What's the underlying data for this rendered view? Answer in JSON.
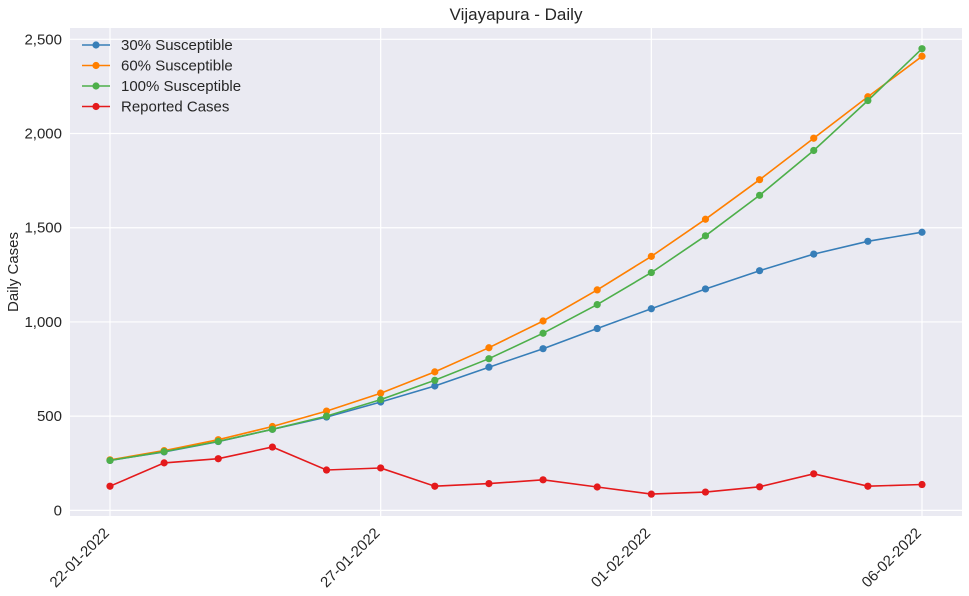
{
  "chart_data": {
    "type": "line",
    "title": "Vijayapura - Daily",
    "xlabel": "",
    "ylabel": "Daily Cases",
    "x": [
      "22-01-2022",
      "23-01-2022",
      "24-01-2022",
      "25-01-2022",
      "26-01-2022",
      "27-01-2022",
      "28-01-2022",
      "29-01-2022",
      "30-01-2022",
      "31-01-2022",
      "01-02-2022",
      "02-02-2022",
      "03-02-2022",
      "04-02-2022",
      "05-02-2022",
      "06-02-2022"
    ],
    "x_ticks": [
      "22-01-2022",
      "27-01-2022",
      "01-02-2022",
      "06-02-2022"
    ],
    "y_ticks": [
      0,
      500,
      1000,
      1500,
      2000,
      2500
    ],
    "y_tick_labels": [
      "0",
      "500",
      "1,000",
      "1,500",
      "2,000",
      "2,500"
    ],
    "ylim": [
      -30,
      2560
    ],
    "grid": true,
    "legend_position": "top-left",
    "series": [
      {
        "name": "30% Susceptible",
        "color": "#377eb8",
        "values": [
          265,
          310,
          365,
          430,
          495,
          575,
          660,
          760,
          858,
          965,
          1070,
          1175,
          1272,
          1360,
          1428,
          1476
        ]
      },
      {
        "name": "60% Susceptible",
        "color": "#ff7f00",
        "values": [
          268,
          317,
          375,
          445,
          527,
          622,
          735,
          863,
          1005,
          1170,
          1348,
          1545,
          1755,
          1975,
          2195,
          2410
        ]
      },
      {
        "name": "100% Susceptible",
        "color": "#4daf4a",
        "values": [
          265,
          312,
          366,
          430,
          500,
          588,
          690,
          805,
          940,
          1092,
          1262,
          1457,
          1672,
          1910,
          2175,
          2450
        ]
      },
      {
        "name": "Reported Cases",
        "color": "#e41a1c",
        "values": [
          128,
          252,
          274,
          336,
          214,
          225,
          128,
          142,
          162,
          124,
          86,
          97,
          125,
          194,
          128,
          137
        ]
      }
    ]
  }
}
